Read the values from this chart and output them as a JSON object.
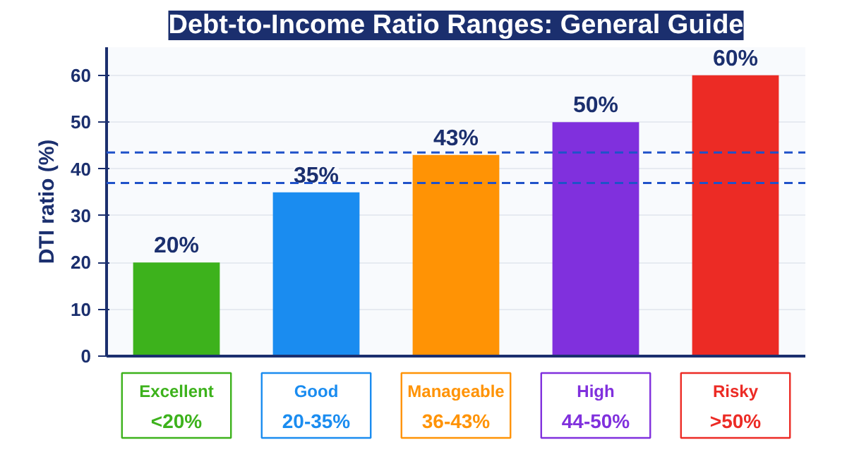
{
  "chart_data": {
    "type": "bar",
    "title": "Debt-to-Income Ratio Ranges: General Guide",
    "ylabel": "DTI ratio (%)",
    "categories": [
      "Excellent\n<20%",
      "Good\n20-35%",
      "Manageable\n36-43%",
      "High\n44-50%",
      "Risky\n>50%"
    ],
    "values": [
      20,
      35,
      43,
      50,
      60
    ],
    "value_labels": [
      "20%",
      "35%",
      "43%",
      "50%",
      "60%"
    ],
    "colors": [
      "#3db21c",
      "#1a8cf0",
      "#ff9305",
      "#8030dd",
      "#ec2b25"
    ],
    "ylim": [
      0,
      66
    ],
    "yticks": [
      0,
      10,
      20,
      30,
      40,
      50,
      60
    ],
    "grid": "y",
    "ref_lines": [
      {
        "axis": "y",
        "value": 43.5,
        "color": "#1f52c9",
        "line_style": "dashed"
      },
      {
        "axis": "y",
        "value": 37,
        "color": "#1f52c9",
        "line_style": "dashed"
      }
    ]
  }
}
